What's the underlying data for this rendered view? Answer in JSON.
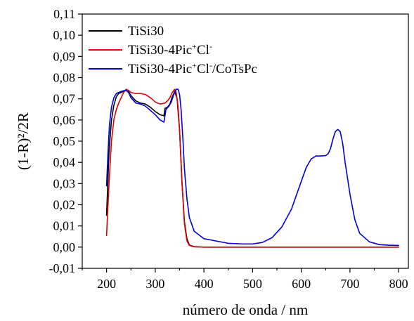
{
  "chart_data": {
    "type": "line",
    "title": "",
    "xlabel": "número de onda / nm",
    "ylabel": "(1-R)²/2R",
    "xlim": [
      150,
      820
    ],
    "ylim": [
      -0.01,
      0.11
    ],
    "x_ticks": [
      200,
      300,
      400,
      500,
      600,
      700,
      800
    ],
    "x_tick_labels": [
      "200",
      "300",
      "400",
      "500",
      "600",
      "700",
      "800"
    ],
    "y_ticks": [
      -0.01,
      0.0,
      0.01,
      0.02,
      0.03,
      0.04,
      0.05,
      0.06,
      0.07,
      0.08,
      0.09,
      0.1,
      0.11
    ],
    "y_tick_labels": [
      "-0,01",
      "0,00",
      "0,01",
      "0,02",
      "0,03",
      "0,04",
      "0,05",
      "0,06",
      "0,07",
      "0,08",
      "0,09",
      "0,10",
      "0,11"
    ],
    "grid": false,
    "legend_position": "top-left",
    "series": [
      {
        "name": "TiSi30",
        "legend_base": "TiSi30",
        "legend_sup1": "",
        "legend_mid": "",
        "legend_sup2": "",
        "legend_tail": "",
        "color": "#000000",
        "x": [
          200,
          205,
          210,
          215,
          220,
          225,
          230,
          235,
          240,
          245,
          250,
          260,
          270,
          280,
          290,
          300,
          310,
          318,
          320,
          325,
          330,
          335,
          340,
          345,
          350,
          355,
          360,
          365,
          370,
          380,
          400,
          500,
          600,
          700,
          800
        ],
        "y": [
          0.015,
          0.045,
          0.06,
          0.067,
          0.071,
          0.0725,
          0.073,
          0.0735,
          0.074,
          0.0735,
          0.0715,
          0.069,
          0.068,
          0.0675,
          0.066,
          0.064,
          0.0625,
          0.062,
          0.0655,
          0.066,
          0.0675,
          0.071,
          0.0735,
          0.07,
          0.055,
          0.03,
          0.012,
          0.004,
          0.001,
          0.0002,
          0.0,
          0.0,
          0.0,
          0.0,
          0.0
        ]
      },
      {
        "name": "TiSi30-4Pic+Cl-",
        "legend_base": "TiSi30-4Pic",
        "legend_sup1": "+",
        "legend_mid": "Cl",
        "legend_sup2": "-",
        "legend_tail": "",
        "color": "#e00000",
        "x": [
          200,
          205,
          210,
          215,
          220,
          225,
          230,
          235,
          240,
          245,
          250,
          260,
          270,
          280,
          290,
          300,
          310,
          320,
          325,
          330,
          335,
          340,
          343,
          347,
          350,
          355,
          360,
          365,
          370,
          380,
          400,
          500,
          600,
          700,
          800
        ],
        "y": [
          0.0055,
          0.03,
          0.05,
          0.06,
          0.065,
          0.068,
          0.0705,
          0.073,
          0.0745,
          0.074,
          0.073,
          0.0725,
          0.0725,
          0.072,
          0.0705,
          0.0685,
          0.0675,
          0.068,
          0.069,
          0.0705,
          0.073,
          0.0745,
          0.073,
          0.066,
          0.055,
          0.03,
          0.011,
          0.003,
          0.0008,
          0.0001,
          0.0,
          0.0,
          0.0,
          0.0,
          0.0
        ]
      },
      {
        "name": "TiSi30-4Pic+Cl-/CoTsPc",
        "legend_base": "TiSi30-4Pic",
        "legend_sup1": "+",
        "legend_mid": "Cl",
        "legend_sup2": "-",
        "legend_tail": "/CoTsPc",
        "color": "#0000e0",
        "x": [
          200,
          203,
          206,
          210,
          215,
          220,
          225,
          230,
          235,
          240,
          245,
          250,
          260,
          270,
          280,
          290,
          300,
          310,
          318,
          322,
          328,
          333,
          338,
          343,
          347,
          350,
          353,
          357,
          360,
          365,
          370,
          380,
          400,
          450,
          480,
          500,
          520,
          540,
          560,
          580,
          600,
          610,
          620,
          630,
          640,
          650,
          655,
          660,
          665,
          670,
          675,
          680,
          685,
          690,
          700,
          710,
          720,
          740,
          760,
          780,
          800
        ],
        "y": [
          0.029,
          0.045,
          0.058,
          0.066,
          0.0705,
          0.0725,
          0.073,
          0.0735,
          0.0738,
          0.074,
          0.073,
          0.0705,
          0.068,
          0.0675,
          0.0665,
          0.0645,
          0.0625,
          0.06,
          0.059,
          0.065,
          0.0665,
          0.0685,
          0.072,
          0.0745,
          0.0745,
          0.072,
          0.065,
          0.05,
          0.037,
          0.023,
          0.014,
          0.0075,
          0.004,
          0.0018,
          0.0015,
          0.0015,
          0.0022,
          0.0045,
          0.0095,
          0.018,
          0.031,
          0.0375,
          0.0415,
          0.043,
          0.043,
          0.0432,
          0.044,
          0.0465,
          0.051,
          0.0545,
          0.0555,
          0.0545,
          0.049,
          0.04,
          0.025,
          0.013,
          0.0065,
          0.0025,
          0.0012,
          0.0009,
          0.0008
        ]
      }
    ]
  }
}
